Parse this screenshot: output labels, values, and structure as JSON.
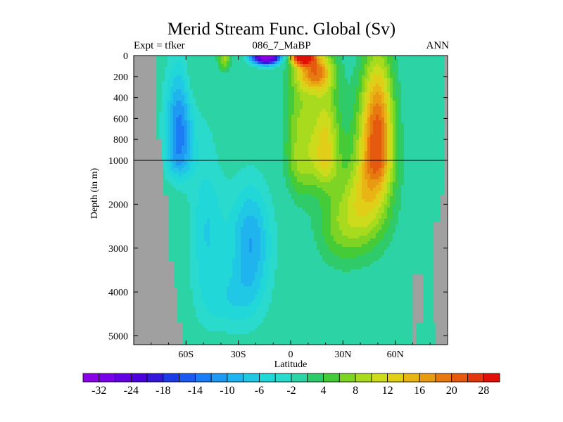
{
  "chart_data": {
    "type": "heatmap",
    "title": "Merid Stream Func. Global (Sv)",
    "subtitle": "086_7_MaBP",
    "left_label": "Expt = tfker",
    "right_label": "ANN",
    "xlabel": "Latitude",
    "ylabel": "Depth (in m)",
    "x_ticks": [
      {
        "value": -60,
        "label": "60S"
      },
      {
        "value": -30,
        "label": "30S"
      },
      {
        "value": 0,
        "label": "0"
      },
      {
        "value": 30,
        "label": "30N"
      },
      {
        "value": 60,
        "label": "60N"
      }
    ],
    "x_range": [
      -90,
      90
    ],
    "y_upper_ticks": [
      {
        "value": 0,
        "label": "0"
      },
      {
        "value": 200,
        "label": "200"
      },
      {
        "value": 400,
        "label": "400"
      },
      {
        "value": 600,
        "label": "600"
      },
      {
        "value": 800,
        "label": "800"
      },
      {
        "value": 1000,
        "label": "1000"
      }
    ],
    "y_lower_ticks": [
      {
        "value": 2000,
        "label": "2000"
      },
      {
        "value": 3000,
        "label": "3000"
      },
      {
        "value": 4000,
        "label": "4000"
      },
      {
        "value": 5000,
        "label": "5000"
      }
    ],
    "y_range": [
      0,
      5200
    ],
    "y_break": 1000,
    "colorbar": {
      "labels": [
        "-32",
        "-24",
        "-18",
        "-14",
        "-10",
        "-6",
        "-2",
        "4",
        "8",
        "12",
        "16",
        "20",
        "28"
      ],
      "colors": [
        "#8C00E6",
        "#7A00E8",
        "#6400E2",
        "#4C00DC",
        "#3418D8",
        "#1E3CE6",
        "#1A5AEE",
        "#1C7CF4",
        "#1F9AF2",
        "#1FB4EE",
        "#20C8E6",
        "#21D7D7",
        "#2ADACC",
        "#2CD3A4",
        "#2FCB6A",
        "#46CB38",
        "#7ED424",
        "#A8DB1E",
        "#CCDC1C",
        "#E0CE18",
        "#E8B514",
        "#E89A12",
        "#E67A10",
        "#E45A0E",
        "#E2380C",
        "#E01208"
      ]
    },
    "land_color": "#A0A0A0",
    "background_value": 0,
    "features": [
      {
        "name": "southern ocean cell",
        "lat": -64,
        "depth": 700,
        "value": -14
      },
      {
        "name": "antarctic bottom cell",
        "lat": -23,
        "depth": 3000,
        "value": -10
      },
      {
        "name": "southern subtropical cell",
        "lat": -14,
        "depth": 20,
        "value": -32
      },
      {
        "name": "northern subtropical cell",
        "lat": 8,
        "depth": 20,
        "value": 28
      },
      {
        "name": "north atlantic overturning",
        "lat": 50,
        "depth": 700,
        "value": 18
      },
      {
        "name": "equatorial upwelling",
        "lat": 3,
        "depth": 500,
        "value": 8
      },
      {
        "name": "southern surface jet",
        "lat": -38,
        "depth": 20,
        "value": 10
      }
    ]
  }
}
